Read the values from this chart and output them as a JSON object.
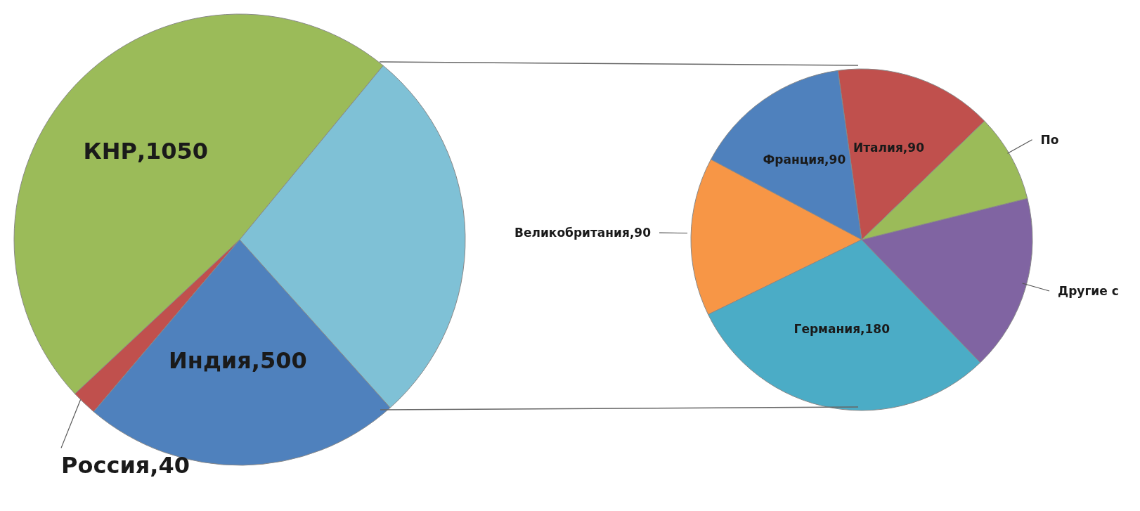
{
  "chart_data": [
    {
      "type": "pie",
      "categories": [
        "КНР",
        "Россия",
        "Индия",
        null
      ],
      "values": [
        1050,
        40,
        500,
        600
      ],
      "colors": [
        "#9bbb59",
        "#c0504d",
        "#4f81bd",
        "#7fc1d6"
      ],
      "value_labels": [
        "1050",
        "40",
        "500",
        null
      ]
    },
    {
      "type": "pie",
      "categories": [
        "Италия",
        "Франция",
        "Великобритания",
        "Германия",
        "Другие с",
        "По"
      ],
      "values": [
        90,
        90,
        90,
        180,
        100,
        50
      ],
      "colors": [
        "#c0504d",
        "#4f81bd",
        "#f79646",
        "#4bacc6",
        "#8064a2",
        "#9bbb59"
      ],
      "value_labels": [
        "90",
        "90",
        "90",
        "180",
        null,
        null
      ]
    }
  ]
}
